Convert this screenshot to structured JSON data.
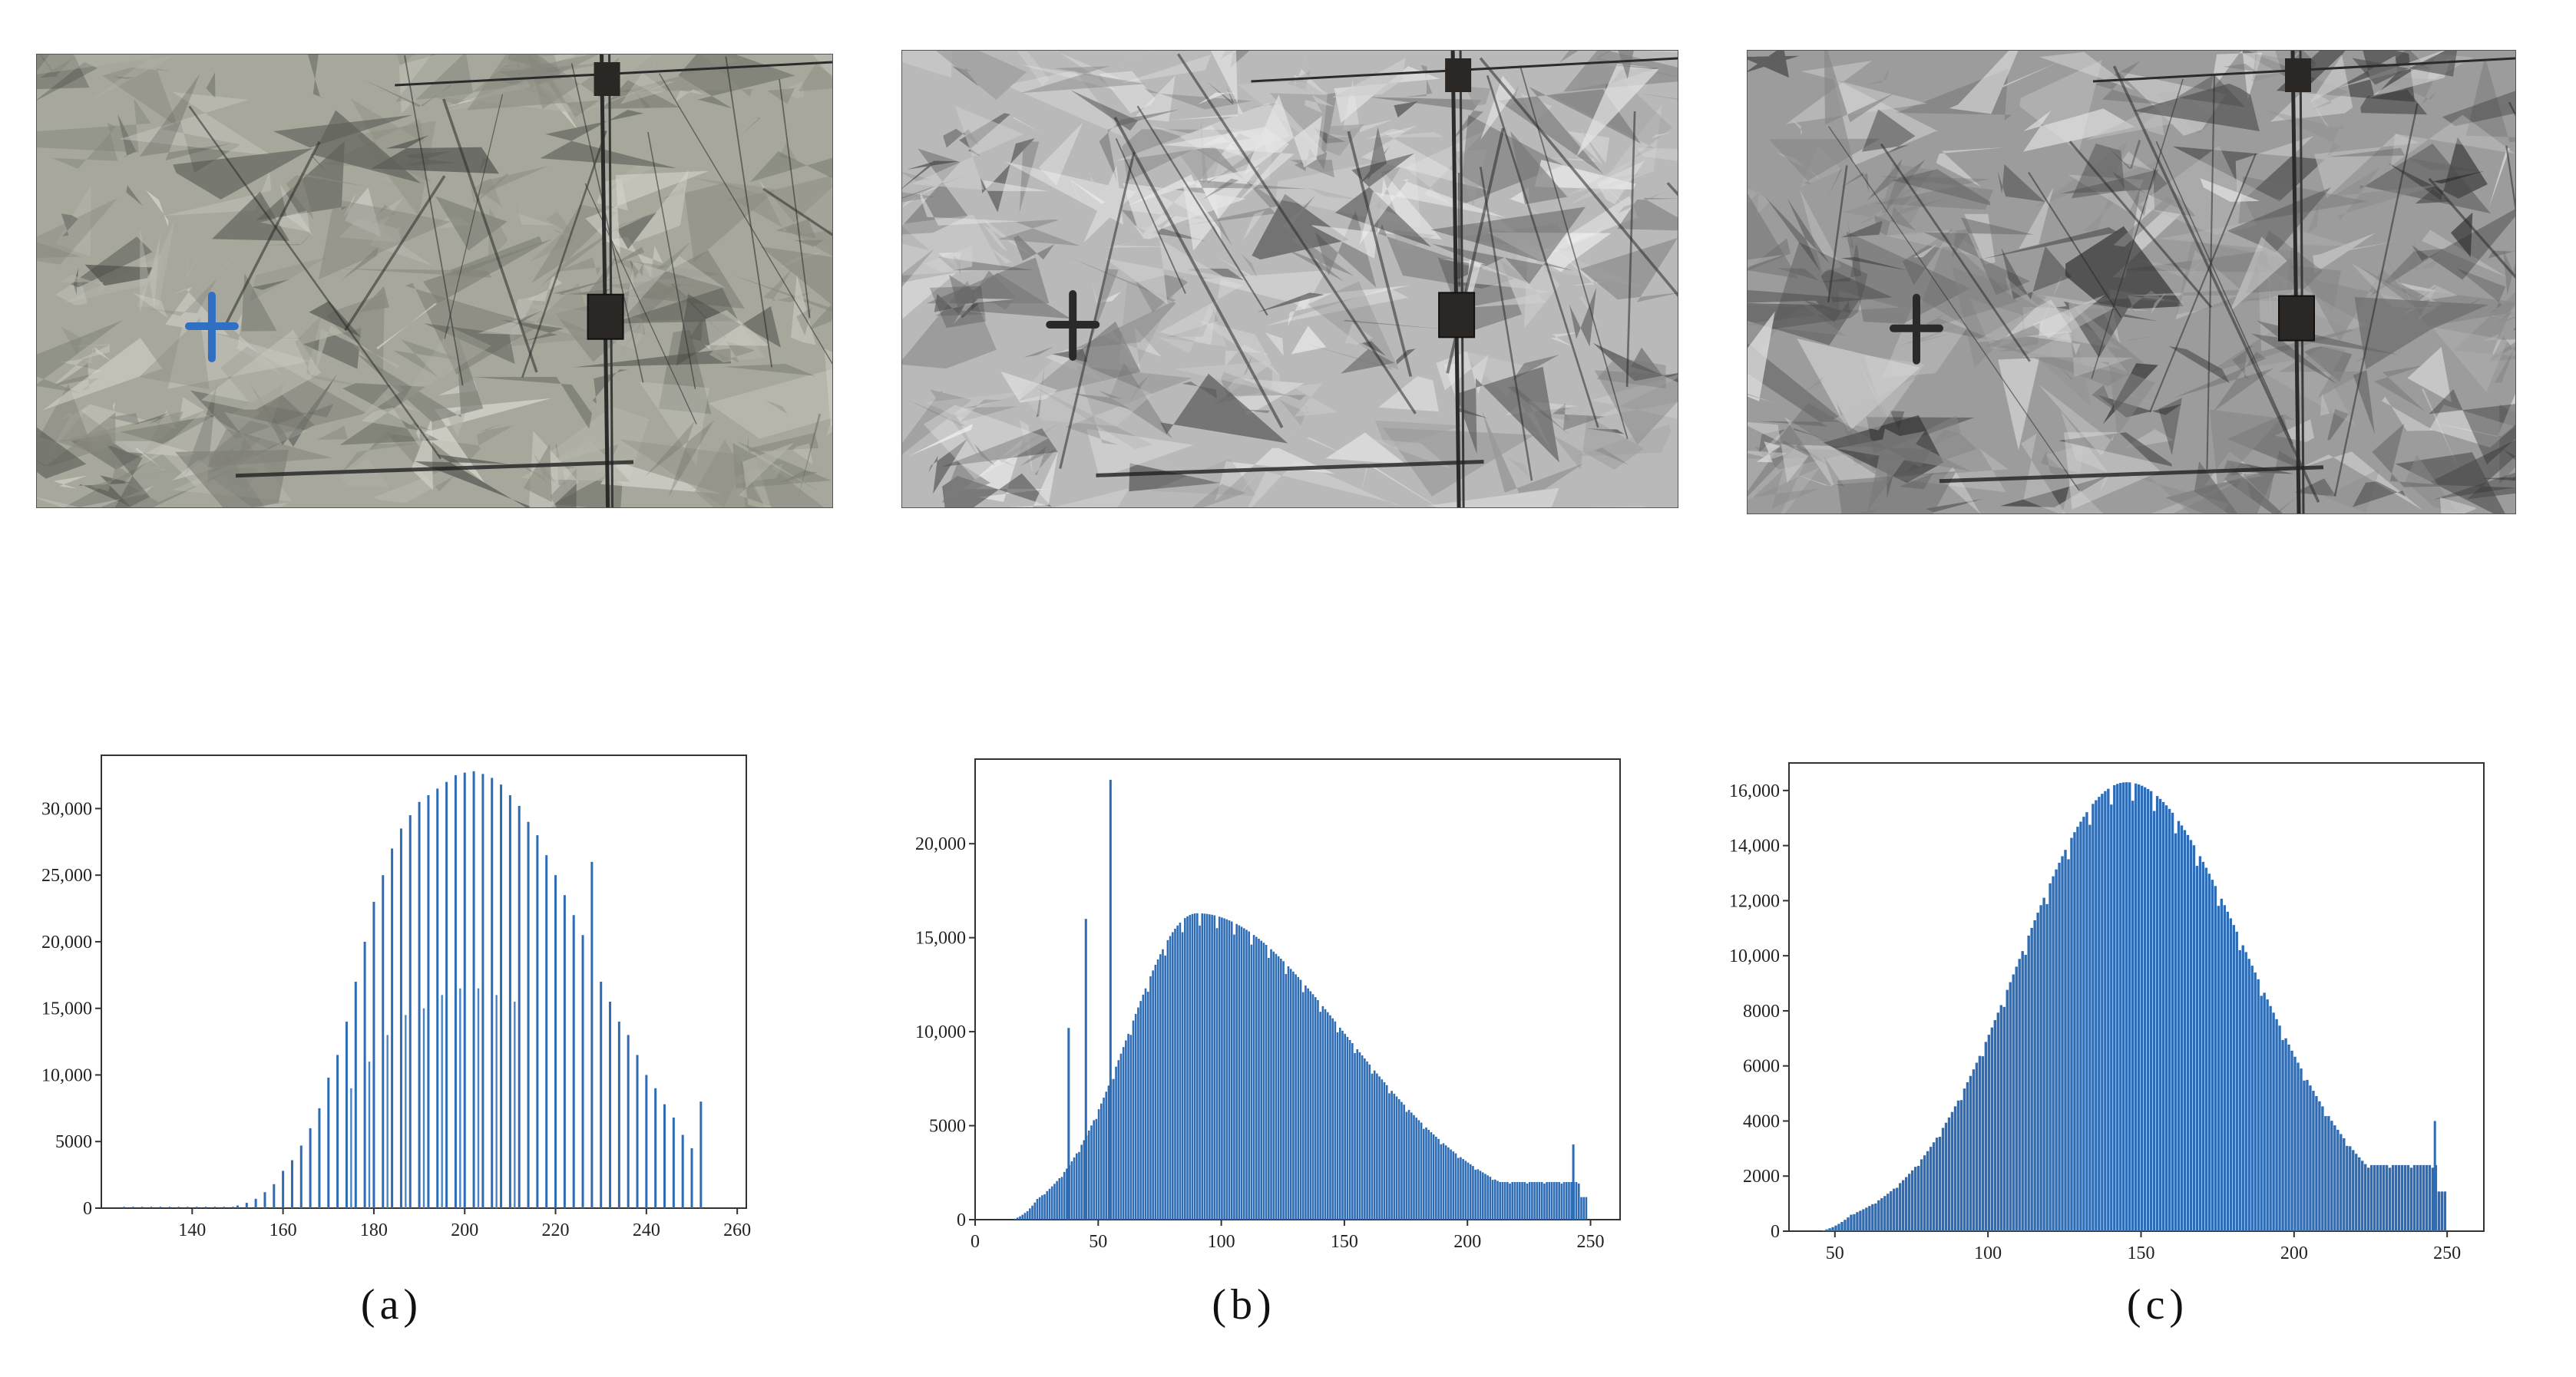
{
  "images": [
    {
      "id": "a",
      "tone": "color",
      "marker_color": "#2f6fc4"
    },
    {
      "id": "b",
      "tone": "gray",
      "marker_color": "#2a2a2a"
    },
    {
      "id": "c",
      "tone": "gray-equalized",
      "marker_color": "#2a2a2a"
    }
  ],
  "captions": [
    "(a)",
    "(b)",
    "(c)"
  ],
  "colors": {
    "bar": "#2e6cb5",
    "bar_light": "#4a86c7",
    "frame": "#333333"
  },
  "chart_data": [
    {
      "type": "bar",
      "title": "",
      "xlabel": "",
      "ylabel": "",
      "xlim": [
        120,
        262
      ],
      "ylim": [
        0,
        34000
      ],
      "xticks": [
        140,
        160,
        180,
        200,
        220,
        240,
        260
      ],
      "yticks": [
        0,
        5000,
        10000,
        15000,
        20000,
        25000,
        30000
      ],
      "ytick_labels": [
        "0",
        "5000",
        "10,000",
        "15,000",
        "20,000",
        "25,000",
        "30,000"
      ],
      "series": [
        {
          "name": "",
          "bins": [
            [
              150,
              200
            ],
            [
              152,
              400
            ],
            [
              154,
              700
            ],
            [
              156,
              1200
            ],
            [
              158,
              1800
            ],
            [
              160,
              2800
            ],
            [
              162,
              3600
            ],
            [
              164,
              4700
            ],
            [
              166,
              6000
            ],
            [
              168,
              7500
            ],
            [
              170,
              9800
            ],
            [
              172,
              11500
            ],
            [
              174,
              14000
            ],
            [
              176,
              17000
            ],
            [
              178,
              20000
            ],
            [
              180,
              23000
            ],
            [
              182,
              25000
            ],
            [
              184,
              27000
            ],
            [
              186,
              28500
            ],
            [
              188,
              29500
            ],
            [
              190,
              30500
            ],
            [
              192,
              31000
            ],
            [
              194,
              31500
            ],
            [
              196,
              32000
            ],
            [
              198,
              32500
            ],
            [
              200,
              32700
            ],
            [
              202,
              32800
            ],
            [
              204,
              32600
            ],
            [
              206,
              32300
            ],
            [
              208,
              31800
            ],
            [
              210,
              31000
            ],
            [
              212,
              30200
            ],
            [
              214,
              29000
            ],
            [
              216,
              28000
            ],
            [
              218,
              26500
            ],
            [
              220,
              25000
            ],
            [
              222,
              23500
            ],
            [
              224,
              22000
            ],
            [
              226,
              20500
            ],
            [
              228,
              26000
            ],
            [
              230,
              17000
            ],
            [
              232,
              15500
            ],
            [
              234,
              14000
            ],
            [
              236,
              13000
            ],
            [
              238,
              11500
            ],
            [
              240,
              10000
            ],
            [
              242,
              9000
            ],
            [
              244,
              7800
            ],
            [
              246,
              6800
            ],
            [
              248,
              5500
            ],
            [
              250,
              4500
            ],
            [
              252,
              8000
            ]
          ],
          "bins_secondary": [
            [
              175,
              9000
            ],
            [
              179,
              11000
            ],
            [
              183,
              13000
            ],
            [
              187,
              14500
            ],
            [
              191,
              15000
            ],
            [
              195,
              16000
            ],
            [
              199,
              16500
            ],
            [
              203,
              16500
            ],
            [
              207,
              16000
            ],
            [
              211,
              15500
            ]
          ]
        }
      ]
    },
    {
      "type": "bar",
      "title": "",
      "xlabel": "",
      "ylabel": "",
      "xlim": [
        0,
        262
      ],
      "ylim": [
        0,
        24500
      ],
      "xticks": [
        0,
        50,
        100,
        150,
        200,
        250
      ],
      "yticks": [
        0,
        5000,
        10000,
        15000,
        20000
      ],
      "ytick_labels": [
        "0",
        "5000",
        "10,000",
        "15,000",
        "20,000"
      ],
      "series": [
        {
          "name": "",
          "peak_center": 90,
          "peak_height": 16300,
          "start": 15,
          "end": 248,
          "spikes": [
            [
              38,
              10200
            ],
            [
              45,
              16000
            ],
            [
              55,
              23400
            ],
            [
              243,
              4000
            ]
          ],
          "tail_value": 2000
        }
      ]
    },
    {
      "type": "bar",
      "title": "",
      "xlabel": "",
      "ylabel": "",
      "xlim": [
        35,
        262
      ],
      "ylim": [
        0,
        17000
      ],
      "xticks": [
        50,
        100,
        150,
        200,
        250
      ],
      "yticks": [
        0,
        2000,
        4000,
        6000,
        8000,
        10000,
        12000,
        14000,
        16000
      ],
      "ytick_labels": [
        "0",
        "2000",
        "4000",
        "6000",
        "8000",
        "10,000",
        "12,000",
        "14,000",
        "16,000"
      ],
      "series": [
        {
          "name": "",
          "peak_center": 145,
          "peak_height": 16300,
          "start": 45,
          "end": 249,
          "spikes": [
            [
              246,
              4000
            ]
          ],
          "tail_value": 2400
        }
      ]
    }
  ]
}
